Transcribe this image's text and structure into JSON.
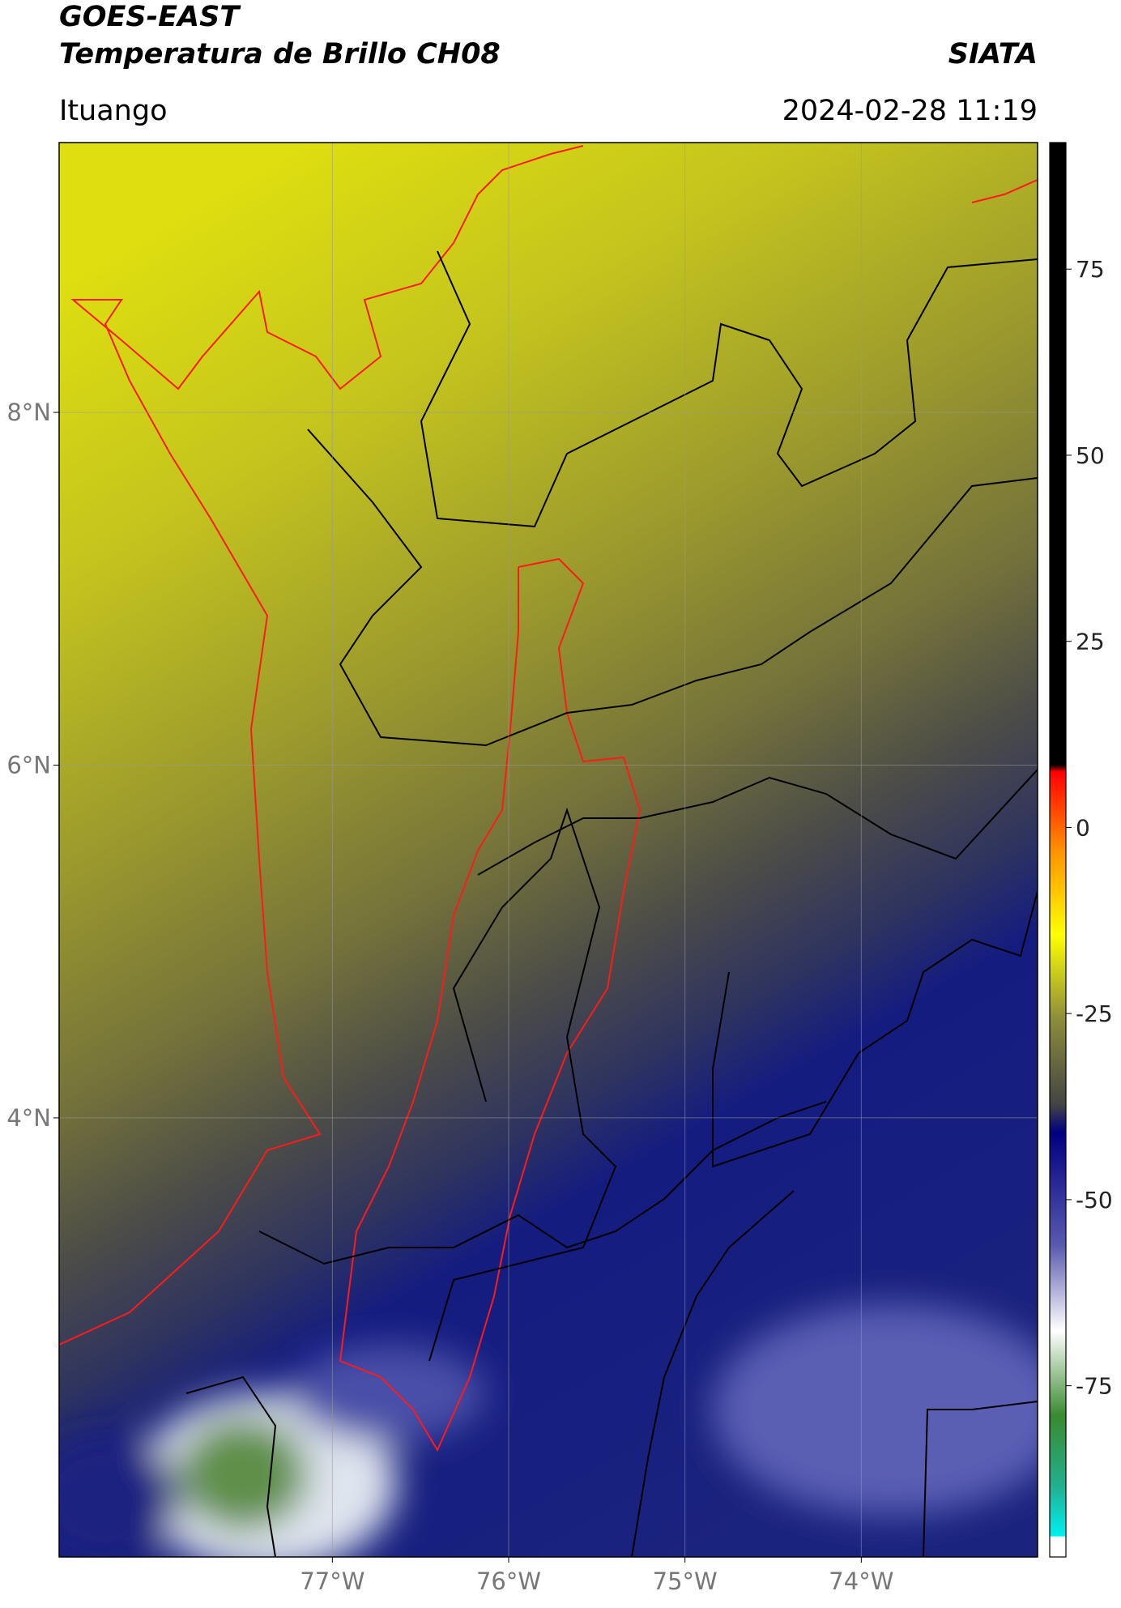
{
  "header": {
    "title": "GOES-EAST",
    "subtitle": "Temperatura de Brillo CH08",
    "brand": "SIATA",
    "location": "Ituango",
    "datetime": "2024-02-28 11:19"
  },
  "map": {
    "xlim": [
      -78.55,
      -73.0
    ],
    "ylim": [
      1.51,
      9.53
    ],
    "xticks": [
      {
        "value": -77,
        "label": "77°W"
      },
      {
        "value": -76,
        "label": "76°W"
      },
      {
        "value": -75,
        "label": "75°W"
      },
      {
        "value": -74,
        "label": "74°W"
      }
    ],
    "yticks": [
      {
        "value": 8,
        "label": "8°N"
      },
      {
        "value": 6,
        "label": "6°N"
      },
      {
        "value": 4,
        "label": "4°N"
      }
    ],
    "grid": true
  },
  "colorbar": {
    "lim": [
      -98,
      92
    ],
    "ticks": [
      75,
      50,
      25,
      0,
      -25,
      -50,
      -75
    ]
  }
}
